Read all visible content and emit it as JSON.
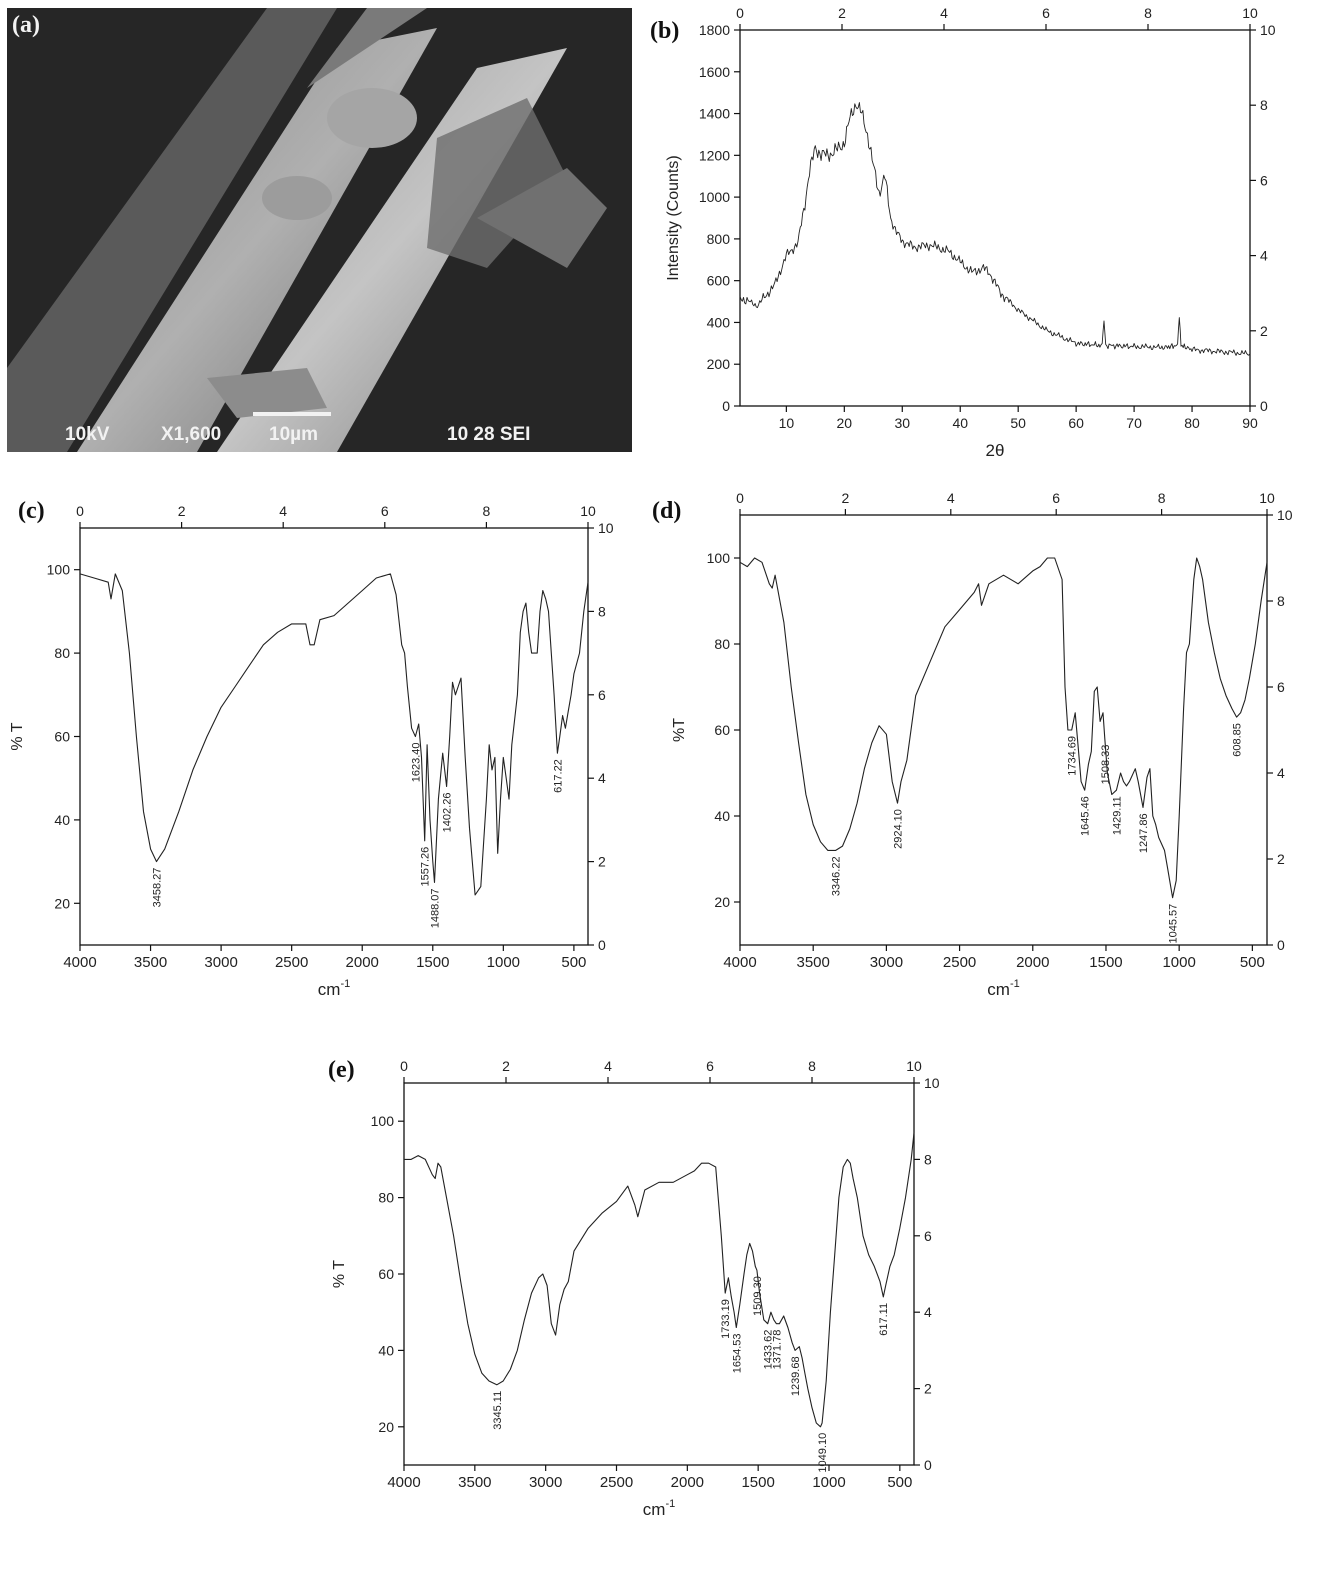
{
  "panels": {
    "a": {
      "letter": "(a)",
      "sem": {
        "kv": "10kV",
        "mag": "X1,600",
        "scale": "10µm",
        "info": "10 28 SEI"
      }
    },
    "b": {
      "letter": "(b)"
    },
    "c": {
      "letter": "(c)"
    },
    "d": {
      "letter": "(d)"
    },
    "e": {
      "letter": "(e)"
    }
  },
  "chart_data": [
    {
      "id": "b",
      "type": "line",
      "title": "",
      "xlabel": "2θ",
      "ylabel": "Intensity (Counts)",
      "xlim": [
        2,
        90
      ],
      "ylim": [
        0,
        1800
      ],
      "xticks": [
        10,
        20,
        30,
        40,
        50,
        60,
        70,
        80,
        90
      ],
      "yticks": [
        0,
        200,
        400,
        600,
        800,
        1000,
        1200,
        1400,
        1600,
        1800
      ],
      "top_ticks": [
        0,
        2,
        4,
        6,
        8,
        10
      ],
      "right_ticks": [
        0,
        2,
        4,
        6,
        8,
        10
      ],
      "series": [
        {
          "x": [
            2,
            5,
            8,
            10,
            12,
            13,
            14,
            15,
            16,
            18,
            20,
            21,
            22,
            23,
            24,
            25,
            26,
            27,
            28,
            29,
            30,
            32,
            35,
            38,
            40,
            42,
            44,
            45,
            47,
            50,
            55,
            60,
            64.5,
            64.8,
            65.1,
            70,
            75,
            77.5,
            77.8,
            78.1,
            80,
            85,
            90
          ],
          "y": [
            520,
            480,
            580,
            720,
            780,
            940,
            1120,
            1240,
            1200,
            1210,
            1260,
            1380,
            1450,
            1400,
            1300,
            1150,
            1020,
            1100,
            900,
            830,
            790,
            760,
            770,
            740,
            690,
            640,
            660,
            640,
            540,
            460,
            360,
            300,
            290,
            420,
            290,
            285,
            280,
            290,
            430,
            290,
            270,
            260,
            250
          ]
        }
      ]
    },
    {
      "id": "c",
      "type": "line",
      "title": "",
      "xlabel": "cm",
      "xlabel_sup": "-1",
      "ylabel": "% T",
      "xlim": [
        4000,
        400
      ],
      "ylim": [
        10,
        110
      ],
      "xticks": [
        4000,
        3500,
        3000,
        2500,
        2000,
        1500,
        1000,
        500
      ],
      "yticks": [
        20,
        40,
        60,
        80,
        100
      ],
      "top_ticks": [
        0,
        2,
        4,
        6,
        8,
        10
      ],
      "right_ticks": [
        0,
        2,
        4,
        6,
        8,
        10
      ],
      "series": [
        {
          "x": [
            4000,
            3900,
            3800,
            3780,
            3750,
            3700,
            3650,
            3600,
            3550,
            3500,
            3458,
            3400,
            3300,
            3200,
            3100,
            3000,
            2900,
            2800,
            2700,
            2600,
            2500,
            2400,
            2370,
            2340,
            2300,
            2200,
            2100,
            2000,
            1900,
            1800,
            1760,
            1720,
            1700,
            1680,
            1650,
            1623,
            1600,
            1580,
            1557,
            1540,
            1520,
            1500,
            1488,
            1460,
            1430,
            1402,
            1380,
            1360,
            1340,
            1320,
            1300,
            1270,
            1240,
            1200,
            1160,
            1120,
            1100,
            1080,
            1060,
            1040,
            1020,
            1000,
            980,
            960,
            940,
            900,
            880,
            860,
            840,
            820,
            800,
            760,
            740,
            720,
            700,
            680,
            660,
            640,
            617,
            600,
            580,
            560,
            540,
            520,
            500,
            460,
            430,
            400
          ],
          "y": [
            99,
            98,
            97,
            93,
            99,
            95,
            80,
            60,
            42,
            33,
            30,
            33,
            42,
            52,
            60,
            67,
            72,
            77,
            82,
            85,
            87,
            87,
            82,
            82,
            88,
            89,
            92,
            95,
            98,
            99,
            94,
            82,
            80,
            72,
            62,
            60,
            63,
            55,
            35,
            58,
            40,
            30,
            25,
            45,
            56,
            48,
            60,
            73,
            70,
            72,
            74,
            55,
            38,
            22,
            24,
            45,
            58,
            52,
            55,
            32,
            45,
            55,
            50,
            45,
            58,
            70,
            85,
            90,
            92,
            85,
            80,
            80,
            90,
            95,
            93,
            90,
            80,
            70,
            56,
            60,
            65,
            62,
            66,
            70,
            75,
            80,
            90,
            97
          ]
        }
      ],
      "annotations": [
        {
          "x": 3458,
          "y": 30,
          "label": "3458.27"
        },
        {
          "x": 1623,
          "y": 60,
          "label": "1623.40"
        },
        {
          "x": 1557,
          "y": 35,
          "label": "1557.26"
        },
        {
          "x": 1488,
          "y": 25,
          "label": "1488.07"
        },
        {
          "x": 1402,
          "y": 48,
          "label": "1402.26"
        },
        {
          "x": 617,
          "y": 56,
          "label": "617.22"
        }
      ]
    },
    {
      "id": "d",
      "type": "line",
      "title": "",
      "xlabel": "cm",
      "xlabel_sup": "-1",
      "ylabel": "%T",
      "xlim": [
        4000,
        400
      ],
      "ylim": [
        10,
        110
      ],
      "xticks": [
        4000,
        3500,
        3000,
        2500,
        2000,
        1500,
        1000,
        500
      ],
      "yticks": [
        20,
        40,
        60,
        80,
        100
      ],
      "top_ticks": [
        0,
        2,
        4,
        6,
        8,
        10
      ],
      "right_ticks": [
        0,
        2,
        4,
        6,
        8,
        10
      ],
      "series": [
        {
          "x": [
            4000,
            3950,
            3900,
            3850,
            3800,
            3780,
            3760,
            3700,
            3650,
            3600,
            3550,
            3500,
            3450,
            3400,
            3346,
            3300,
            3250,
            3200,
            3150,
            3100,
            3050,
            3000,
            2960,
            2924,
            2900,
            2860,
            2800,
            2700,
            2600,
            2500,
            2400,
            2370,
            2350,
            2300,
            2200,
            2100,
            2000,
            1950,
            1900,
            1850,
            1800,
            1780,
            1760,
            1734,
            1710,
            1690,
            1670,
            1645,
            1620,
            1600,
            1580,
            1560,
            1540,
            1520,
            1508,
            1490,
            1460,
            1429,
            1400,
            1380,
            1360,
            1340,
            1300,
            1280,
            1247,
            1220,
            1200,
            1180,
            1160,
            1140,
            1100,
            1080,
            1045,
            1020,
            1000,
            970,
            950,
            930,
            900,
            880,
            860,
            840,
            820,
            800,
            760,
            720,
            680,
            640,
            608,
            580,
            550,
            520,
            480,
            440,
            400
          ],
          "y": [
            99,
            98,
            100,
            99,
            94,
            93,
            96,
            85,
            70,
            57,
            45,
            38,
            34,
            32,
            32,
            33,
            37,
            43,
            51,
            57,
            61,
            59,
            48,
            43,
            48,
            53,
            68,
            76,
            84,
            88,
            92,
            94,
            89,
            94,
            96,
            94,
            97,
            98,
            100,
            100,
            95,
            70,
            60,
            60,
            64,
            56,
            48,
            46,
            52,
            55,
            69,
            70,
            62,
            64,
            58,
            50,
            45,
            46,
            50,
            48,
            47,
            48,
            51,
            48,
            42,
            49,
            51,
            40,
            38,
            35,
            32,
            28,
            21,
            25,
            40,
            65,
            78,
            80,
            95,
            100,
            98,
            95,
            90,
            85,
            78,
            72,
            68,
            65,
            63,
            64,
            67,
            72,
            80,
            90,
            99
          ]
        }
      ],
      "annotations": [
        {
          "x": 3346,
          "y": 32,
          "label": "3346.22"
        },
        {
          "x": 2924,
          "y": 43,
          "label": "2924.10"
        },
        {
          "x": 1734,
          "y": 60,
          "label": "1734.69"
        },
        {
          "x": 1645,
          "y": 46,
          "label": "1645.46"
        },
        {
          "x": 1508,
          "y": 58,
          "label": "1508.33"
        },
        {
          "x": 1429,
          "y": 46,
          "label": "1429.11"
        },
        {
          "x": 1247,
          "y": 42,
          "label": "1247.86"
        },
        {
          "x": 1045,
          "y": 21,
          "label": "1045.57"
        },
        {
          "x": 608,
          "y": 63,
          "label": "608.85"
        }
      ]
    },
    {
      "id": "e",
      "type": "line",
      "title": "",
      "xlabel": "cm",
      "xlabel_sup": "-1",
      "ylabel": "% T",
      "xlim": [
        4000,
        400
      ],
      "ylim": [
        10,
        110
      ],
      "xticks": [
        4000,
        3500,
        3000,
        2500,
        2000,
        1500,
        1000,
        500
      ],
      "yticks": [
        20,
        40,
        60,
        80,
        100
      ],
      "top_ticks": [
        0,
        2,
        4,
        6,
        8,
        10
      ],
      "right_ticks": [
        0,
        2,
        4,
        6,
        8,
        10
      ],
      "series": [
        {
          "x": [
            4000,
            3950,
            3900,
            3850,
            3800,
            3780,
            3760,
            3740,
            3700,
            3650,
            3600,
            3550,
            3500,
            3450,
            3400,
            3345,
            3300,
            3250,
            3200,
            3150,
            3100,
            3050,
            3020,
            2990,
            2960,
            2930,
            2900,
            2870,
            2840,
            2800,
            2700,
            2600,
            2500,
            2420,
            2400,
            2370,
            2350,
            2300,
            2200,
            2100,
            2000,
            1950,
            1900,
            1850,
            1800,
            1760,
            1733,
            1710,
            1690,
            1670,
            1654,
            1630,
            1600,
            1580,
            1560,
            1540,
            1520,
            1509,
            1490,
            1460,
            1433,
            1410,
            1390,
            1371,
            1350,
            1320,
            1290,
            1260,
            1239,
            1210,
            1190,
            1170,
            1150,
            1120,
            1090,
            1060,
            1049,
            1020,
            990,
            960,
            930,
            900,
            870,
            850,
            830,
            800,
            760,
            720,
            680,
            640,
            617,
            600,
            570,
            540,
            500,
            460,
            420,
            400
          ],
          "y": [
            90,
            90,
            91,
            90,
            86,
            85,
            89,
            88,
            80,
            70,
            58,
            47,
            39,
            34,
            32,
            31,
            32,
            35,
            40,
            48,
            55,
            59,
            60,
            57,
            47,
            44,
            52,
            56,
            58,
            66,
            72,
            76,
            79,
            83,
            81,
            78,
            75,
            82,
            84,
            84,
            86,
            87,
            89,
            89,
            88,
            70,
            55,
            59,
            54,
            50,
            46,
            52,
            60,
            65,
            68,
            66,
            62,
            61,
            55,
            48,
            47,
            50,
            48,
            47,
            47,
            49,
            46,
            42,
            40,
            41,
            38,
            34,
            30,
            25,
            21,
            20,
            21,
            32,
            50,
            65,
            80,
            88,
            90,
            89,
            85,
            80,
            70,
            65,
            62,
            58,
            54,
            57,
            62,
            65,
            72,
            80,
            90,
            97
          ]
        }
      ],
      "annotations": [
        {
          "x": 3345,
          "y": 31,
          "label": "3345.11"
        },
        {
          "x": 1733,
          "y": 55,
          "label": "1733.19"
        },
        {
          "x": 1654,
          "y": 46,
          "label": "1654.53"
        },
        {
          "x": 1509,
          "y": 61,
          "label": "1509.30"
        },
        {
          "x": 1433,
          "y": 47,
          "label": "1433.62"
        },
        {
          "x": 1371,
          "y": 47,
          "label": "1371.78"
        },
        {
          "x": 1239,
          "y": 40,
          "label": "1239.68"
        },
        {
          "x": 1049,
          "y": 20,
          "label": "1049.10"
        },
        {
          "x": 617,
          "y": 54,
          "label": "617.11"
        }
      ]
    }
  ]
}
